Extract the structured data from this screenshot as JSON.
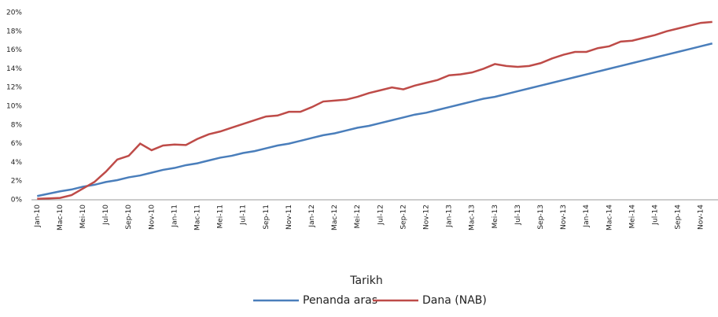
{
  "chart_data": {
    "type": "line",
    "categories": [
      "Jan-10",
      null,
      "Mac-10",
      null,
      "Mei-10",
      null,
      "Jul-10",
      null,
      "Sep-10",
      null,
      "Nov-10",
      null,
      "Jan-11",
      null,
      "Mac-11",
      null,
      "Mei-11",
      null,
      "Jul-11",
      null,
      "Sep-11",
      null,
      "Nov-11",
      null,
      "Jan-12",
      null,
      "Mac-12",
      null,
      "Mei-12",
      null,
      "Jul-12",
      null,
      "Sep-12",
      null,
      "Nov-12",
      null,
      "Jan-13",
      null,
      "Mac-13",
      null,
      "Mei-13",
      null,
      "Jul-13",
      null,
      "Sep-13",
      null,
      "Nov-13",
      null,
      "Jan-14",
      null,
      "Mac-14",
      null,
      "Mei-14",
      null,
      "Jul-14",
      null,
      "Sep-14",
      null,
      "Nov-14",
      null
    ],
    "series": [
      {
        "name": "Penanda aras",
        "color": "#4a7ebb",
        "values": [
          0.4,
          0.65,
          0.9,
          1.1,
          1.4,
          1.6,
          1.9,
          2.1,
          2.4,
          2.6,
          2.9,
          3.2,
          3.4,
          3.7,
          3.9,
          4.2,
          4.5,
          4.7,
          5.0,
          5.2,
          5.5,
          5.8,
          6.0,
          6.3,
          6.6,
          6.9,
          7.1,
          7.4,
          7.7,
          7.9,
          8.2,
          8.5,
          8.8,
          9.1,
          9.3,
          9.6,
          9.9,
          10.2,
          10.5,
          10.8,
          11.0,
          11.3,
          11.6,
          11.9,
          12.2,
          12.5,
          12.8,
          13.1,
          13.4,
          13.7,
          14.0,
          14.3,
          14.6,
          14.9,
          15.2,
          15.5,
          15.8,
          16.1,
          16.4,
          16.7
        ]
      },
      {
        "name": "Dana (NAB)",
        "color": "#be4b48",
        "values": [
          0.1,
          0.15,
          0.2,
          0.5,
          1.2,
          1.9,
          3.0,
          4.3,
          4.7,
          6.0,
          5.3,
          5.8,
          5.9,
          5.85,
          6.5,
          7.0,
          7.3,
          7.7,
          8.1,
          8.5,
          8.9,
          9.0,
          9.4,
          9.4,
          9.9,
          10.5,
          10.6,
          10.7,
          11.0,
          11.4,
          11.7,
          12.0,
          11.8,
          12.2,
          12.5,
          12.8,
          13.3,
          13.4,
          13.6,
          14.0,
          14.5,
          14.3,
          14.2,
          14.3,
          14.6,
          15.1,
          15.5,
          15.8,
          15.8,
          16.2,
          16.4,
          16.9,
          17.0,
          17.3,
          17.6,
          18.0,
          18.3,
          18.6,
          18.9,
          19.0
        ]
      }
    ],
    "x_label": "Tarikh",
    "ylim": [
      0,
      20
    ],
    "yticks": [
      {
        "value": 0,
        "label": "0%"
      },
      {
        "value": 2,
        "label": "2%"
      },
      {
        "value": 4,
        "label": "4%"
      },
      {
        "value": 6,
        "label": "6%"
      },
      {
        "value": 8,
        "label": "8%"
      },
      {
        "value": 10,
        "label": "10%"
      },
      {
        "value": 12,
        "label": "12%"
      },
      {
        "value": 14,
        "label": "14%"
      },
      {
        "value": 16,
        "label": "16%"
      },
      {
        "value": 18,
        "label": "18%"
      },
      {
        "value": 20,
        "label": "20%"
      }
    ],
    "grid": false,
    "legend": "bottom"
  }
}
